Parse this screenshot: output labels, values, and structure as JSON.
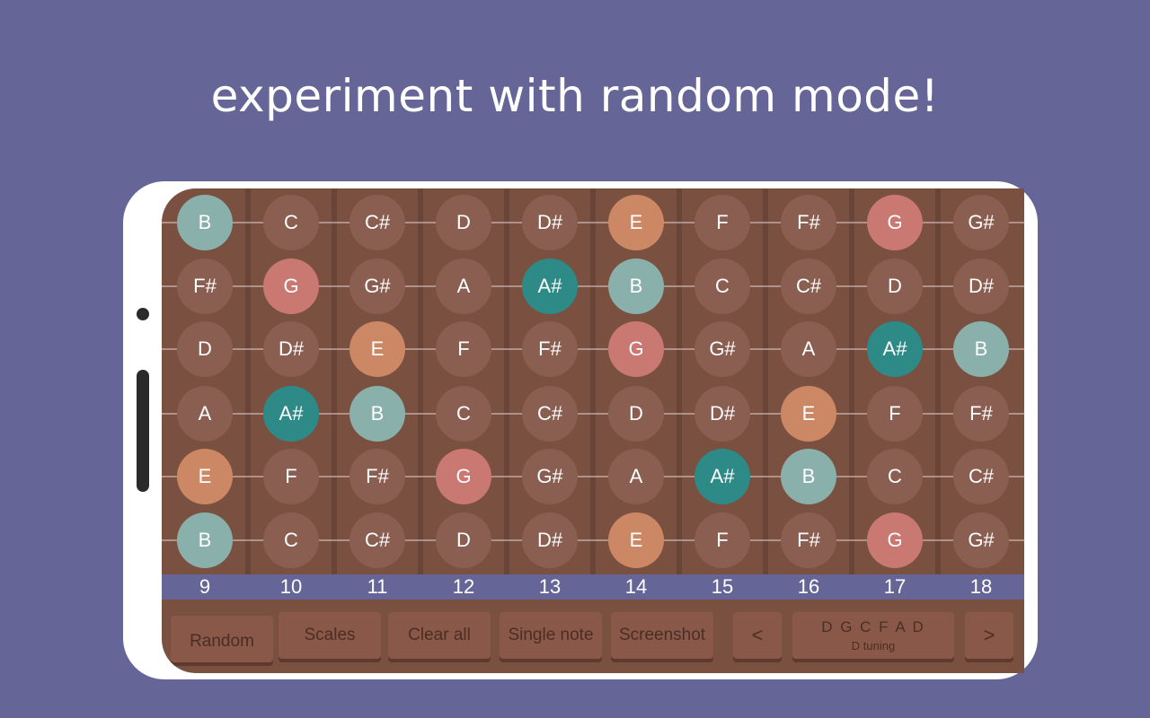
{
  "headline": "experiment with random mode!",
  "colors": {
    "background": "#656597",
    "fretboard": "#7a5040",
    "inactive_note": "#8a5e51",
    "B": "#8ab0ab",
    "G": "#c97872",
    "E": "#cc8865",
    "A#": "#2e8a87"
  },
  "frets": [
    "9",
    "10",
    "11",
    "12",
    "13",
    "14",
    "15",
    "16",
    "17",
    "18"
  ],
  "strings": [
    [
      "B",
      "C",
      "C#",
      "D",
      "D#",
      "E",
      "F",
      "F#",
      "G",
      "G#"
    ],
    [
      "F#",
      "G",
      "G#",
      "A",
      "A#",
      "B",
      "C",
      "C#",
      "D",
      "D#"
    ],
    [
      "D",
      "D#",
      "E",
      "F",
      "F#",
      "G",
      "G#",
      "A",
      "A#",
      "B"
    ],
    [
      "A",
      "A#",
      "B",
      "C",
      "C#",
      "D",
      "D#",
      "E",
      "F",
      "F#"
    ],
    [
      "E",
      "F",
      "F#",
      "G",
      "G#",
      "A",
      "A#",
      "B",
      "C",
      "C#"
    ],
    [
      "B",
      "C",
      "C#",
      "D",
      "D#",
      "E",
      "F",
      "F#",
      "G",
      "G#"
    ]
  ],
  "highlighted_notes": [
    "B",
    "G",
    "E",
    "A#"
  ],
  "buttons": {
    "random": "Random",
    "scales": "Scales",
    "clear_all": "Clear all",
    "single_note": "Single note",
    "screenshot": "Screenshot",
    "prev": "<",
    "next": ">"
  },
  "tuning": {
    "notes": "D G C F A D",
    "name": "D tuning"
  }
}
